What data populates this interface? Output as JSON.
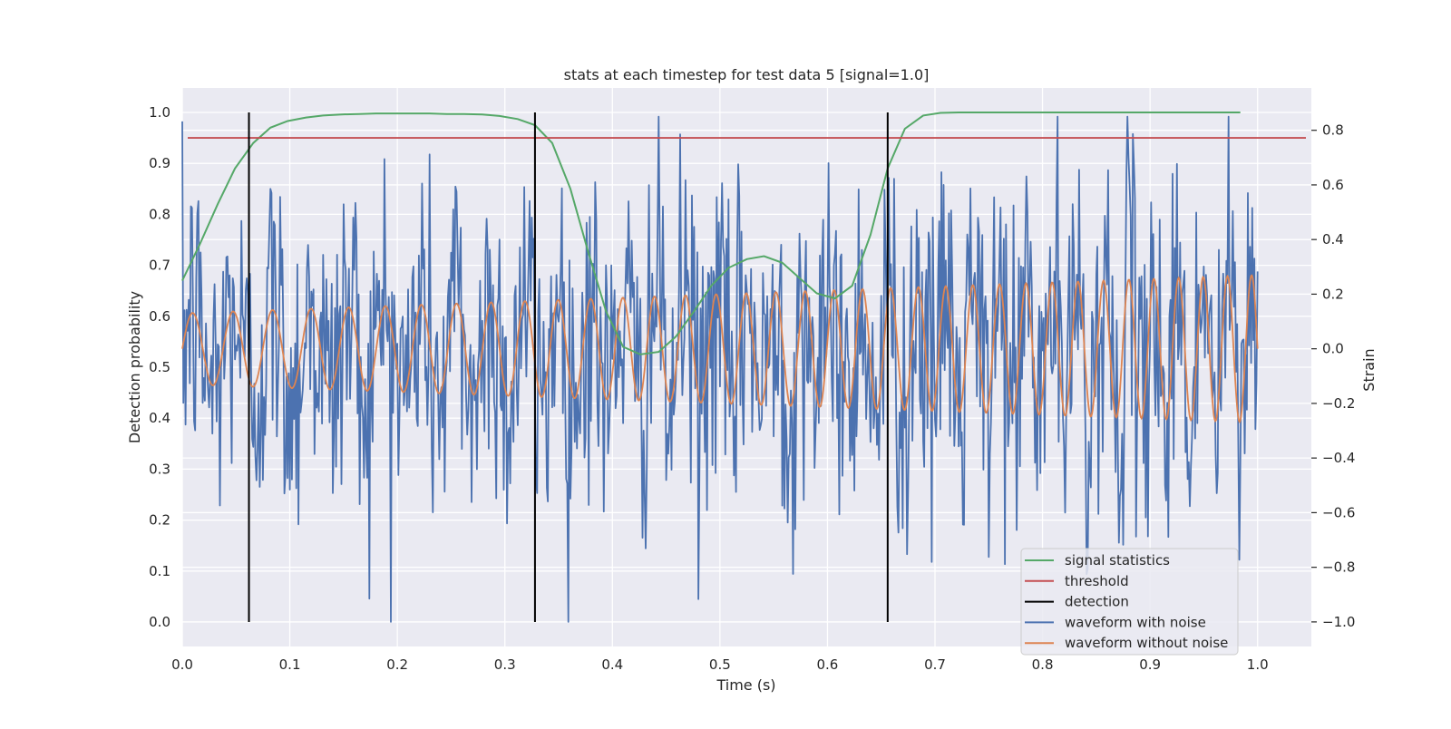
{
  "chart_data": {
    "type": "line",
    "title": "stats at each timestep for test data 5 [signal=1.0]",
    "xlabel": "Time (s)",
    "ylabel": "Detection probability",
    "y2label": "Strain",
    "xlim": [
      0.0,
      1.05
    ],
    "ylim": [
      -0.048,
      1.048
    ],
    "y2lim": [
      -1.09,
      0.955
    ],
    "x_ticks": [
      "0.0",
      "0.1",
      "0.2",
      "0.3",
      "0.4",
      "0.5",
      "0.6",
      "0.7",
      "0.8",
      "0.9",
      "1.0"
    ],
    "y_ticks": [
      "0.0",
      "0.1",
      "0.2",
      "0.3",
      "0.4",
      "0.5",
      "0.6",
      "0.7",
      "0.8",
      "0.9",
      "1.0"
    ],
    "y2_ticks": [
      "−1.0",
      "−0.8",
      "−0.6",
      "−0.4",
      "−0.2",
      "0.0",
      "0.2",
      "0.4",
      "0.6",
      "0.8"
    ],
    "grid": true,
    "legend_position": "lower right",
    "colors": {
      "signal_statistics": "#55a868",
      "threshold": "#c44e52",
      "detection": "#000000",
      "waveform_noise": "#4c72b0",
      "waveform_clean": "#dd8452",
      "plot_bg": "#eaeaf2",
      "grid": "#ffffff"
    },
    "series": [
      {
        "name": "signal statistics",
        "axis": "left",
        "x": [
          0.0,
          0.016,
          0.033,
          0.049,
          0.066,
          0.082,
          0.098,
          0.115,
          0.131,
          0.148,
          0.164,
          0.18,
          0.197,
          0.213,
          0.23,
          0.246,
          0.262,
          0.279,
          0.295,
          0.312,
          0.328,
          0.344,
          0.361,
          0.377,
          0.394,
          0.41,
          0.426,
          0.443,
          0.459,
          0.476,
          0.492,
          0.508,
          0.525,
          0.541,
          0.558,
          0.574,
          0.59,
          0.607,
          0.623,
          0.64,
          0.656,
          0.672,
          0.689,
          0.705,
          0.722,
          0.738,
          0.754,
          0.771,
          0.787,
          0.803,
          0.82,
          0.836,
          0.853,
          0.869,
          0.885,
          0.902,
          0.918,
          0.935,
          0.951,
          0.967,
          0.984
        ],
        "values": [
          0.67,
          0.74,
          0.82,
          0.89,
          0.94,
          0.97,
          0.983,
          0.99,
          0.994,
          0.996,
          0.997,
          0.998,
          0.998,
          0.998,
          0.998,
          0.997,
          0.997,
          0.996,
          0.993,
          0.987,
          0.975,
          0.94,
          0.85,
          0.73,
          0.61,
          0.54,
          0.525,
          0.53,
          0.56,
          0.61,
          0.66,
          0.695,
          0.712,
          0.718,
          0.705,
          0.675,
          0.645,
          0.635,
          0.66,
          0.76,
          0.89,
          0.968,
          0.994,
          0.999,
          1.0,
          1.0,
          1.0,
          1.0,
          1.0,
          1.0,
          1.0,
          1.0,
          1.0,
          1.0,
          1.0,
          1.0,
          1.0,
          1.0,
          1.0,
          1.0,
          1.0
        ]
      },
      {
        "name": "threshold",
        "axis": "left",
        "x": [
          0.0,
          1.05
        ],
        "values": [
          0.95,
          0.95
        ]
      },
      {
        "name": "detection",
        "axis": "left",
        "type": "vlines",
        "x": [
          0.062,
          0.328,
          0.656
        ],
        "ymin": 0.0,
        "ymax": 1.0
      },
      {
        "name": "waveform with noise",
        "axis": "right",
        "x_start": 0.0,
        "x_end": 1.0,
        "generated": "dense noisy strain samples, approx. 1000 points, mean 0, std approx 0.3, range approx -1.0 to 0.85",
        "sample_count": 1000,
        "value_range": [
          -1.0,
          0.85
        ]
      },
      {
        "name": "waveform without noise",
        "axis": "right",
        "x_start": 0.0,
        "x_end": 1.0,
        "generated": "chirping sinusoid, amplitude growing from approx 0.13 to 0.27, frequency rising from approx 26 to 45 Hz",
        "amplitude_range": [
          0.13,
          0.27
        ]
      }
    ]
  }
}
